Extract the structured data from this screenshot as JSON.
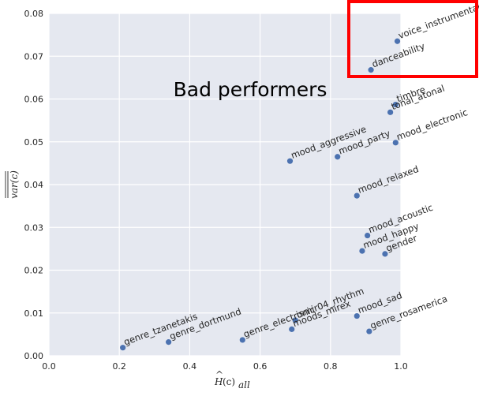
{
  "chart_data": {
    "type": "scatter",
    "title": "",
    "xlim": [
      0.0,
      1.0
    ],
    "ylim": [
      0.0,
      0.08
    ],
    "xticks": [
      "0.0",
      "0.2",
      "0.4",
      "0.6",
      "0.8",
      "1.0"
    ],
    "yticks": [
      "0.00",
      "0.01",
      "0.02",
      "0.03",
      "0.04",
      "0.05",
      "0.06",
      "0.07",
      "0.08"
    ],
    "xlabel": {
      "main": "H",
      "hat": "^",
      "sub": "all",
      "arg": "(c)"
    },
    "ylabel": {
      "text": "var(c)",
      "overline": "double"
    },
    "grid": true,
    "background": "#e5e8f0",
    "point_color": "#4c72b0",
    "points": [
      {
        "label": "genre_tzanetakis",
        "x": 0.21,
        "y": 0.0019
      },
      {
        "label": "genre_dortmund",
        "x": 0.34,
        "y": 0.0032
      },
      {
        "label": "genre_electronic",
        "x": 0.55,
        "y": 0.0037
      },
      {
        "label": "moods_mirex",
        "x": 0.69,
        "y": 0.0062
      },
      {
        "label": "ismir04_rhythm",
        "x": 0.7,
        "y": 0.0083
      },
      {
        "label": "mood_sad",
        "x": 0.875,
        "y": 0.0093
      },
      {
        "label": "genre_rosamerica",
        "x": 0.91,
        "y": 0.0057
      },
      {
        "label": "gender",
        "x": 0.955,
        "y": 0.0238
      },
      {
        "label": "mood_happy",
        "x": 0.89,
        "y": 0.0245
      },
      {
        "label": "mood_acoustic",
        "x": 0.905,
        "y": 0.0281
      },
      {
        "label": "mood_relaxed",
        "x": 0.875,
        "y": 0.0374
      },
      {
        "label": "mood_aggressive",
        "x": 0.685,
        "y": 0.0455
      },
      {
        "label": "mood_party",
        "x": 0.82,
        "y": 0.0465
      },
      {
        "label": "mood_electronic",
        "x": 0.985,
        "y": 0.0498
      },
      {
        "label": "tonal_atonal",
        "x": 0.97,
        "y": 0.0569
      },
      {
        "label": "timbre",
        "x": 0.985,
        "y": 0.0587
      },
      {
        "label": "danceability",
        "x": 0.915,
        "y": 0.0668
      },
      {
        "label": "voice_instrumental",
        "x": 0.99,
        "y": 0.0735
      }
    ],
    "annotation": {
      "text": "Bad performers"
    },
    "highlight": {
      "color": "#ff0000"
    }
  }
}
